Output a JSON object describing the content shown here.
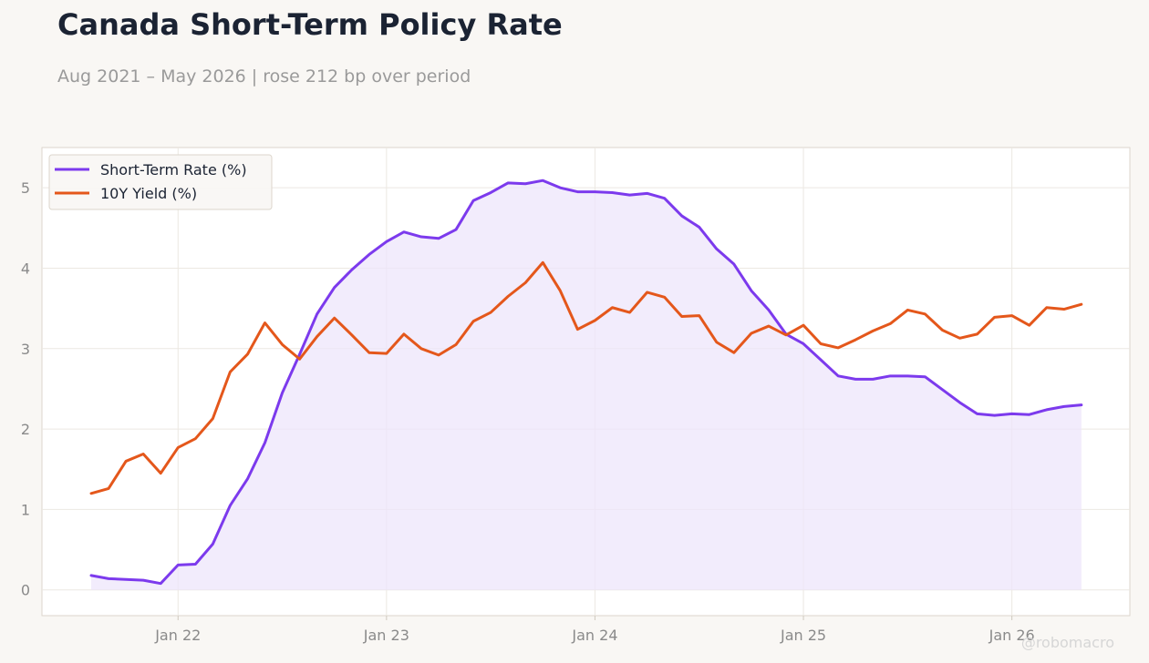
{
  "title": "Canada Short-Term Policy Rate",
  "subtitle": "Aug 2021 – May 2026 | rose 212 bp over period",
  "watermark": "@robomacro",
  "colors": {
    "short_term": "#7c3aed",
    "ten_year": "#e4571b",
    "fill": "#ede5fb",
    "background": "#f9f7f4"
  },
  "chart_data": {
    "type": "line",
    "x_start": "2021-08",
    "x_end": "2026-05",
    "x_ticks": [
      {
        "label": "Jan 22",
        "date": "2022-01"
      },
      {
        "label": "Jan 23",
        "date": "2023-01"
      },
      {
        "label": "Jan 24",
        "date": "2024-01"
      },
      {
        "label": "Jan 25",
        "date": "2025-01"
      },
      {
        "label": "Jan 26",
        "date": "2026-01"
      }
    ],
    "ylim": [
      -0.32,
      5.5
    ],
    "y_ticks": [
      0,
      1,
      2,
      3,
      4,
      5
    ],
    "grid": true,
    "legend_position": "top-left",
    "series": [
      {
        "name": "Short-Term Rate (%)",
        "color": "#7c3aed",
        "fill": true,
        "values": [
          0.18,
          0.14,
          0.13,
          0.12,
          0.08,
          0.31,
          0.32,
          0.57,
          1.05,
          1.38,
          1.83,
          2.45,
          2.93,
          3.43,
          3.76,
          3.98,
          4.17,
          4.33,
          4.45,
          4.39,
          4.37,
          4.48,
          4.84,
          4.94,
          5.06,
          5.05,
          5.09,
          5.0,
          4.95,
          4.95,
          4.94,
          4.91,
          4.93,
          4.87,
          4.65,
          4.51,
          4.24,
          4.05,
          3.72,
          3.48,
          3.18,
          3.06,
          2.86,
          2.66,
          2.62,
          2.62,
          2.66,
          2.66,
          2.65,
          2.49,
          2.33,
          2.19,
          2.17,
          2.19,
          2.18,
          2.24,
          2.28,
          2.3
        ]
      },
      {
        "name": "10Y Yield (%)",
        "color": "#e4571b",
        "fill": false,
        "values": [
          1.2,
          1.26,
          1.6,
          1.69,
          1.45,
          1.77,
          1.88,
          2.13,
          2.71,
          2.93,
          3.32,
          3.05,
          2.87,
          3.15,
          3.38,
          3.17,
          2.95,
          2.94,
          3.18,
          3.0,
          2.92,
          3.05,
          3.34,
          3.45,
          3.65,
          3.82,
          4.07,
          3.72,
          3.24,
          3.35,
          3.51,
          3.45,
          3.7,
          3.64,
          3.4,
          3.41,
          3.08,
          2.95,
          3.19,
          3.28,
          3.17,
          3.29,
          3.06,
          3.01,
          3.11,
          3.22,
          3.31,
          3.48,
          3.43,
          3.23,
          3.13,
          3.18,
          3.39,
          3.41,
          3.29,
          3.51,
          3.49,
          3.55
        ]
      }
    ]
  }
}
